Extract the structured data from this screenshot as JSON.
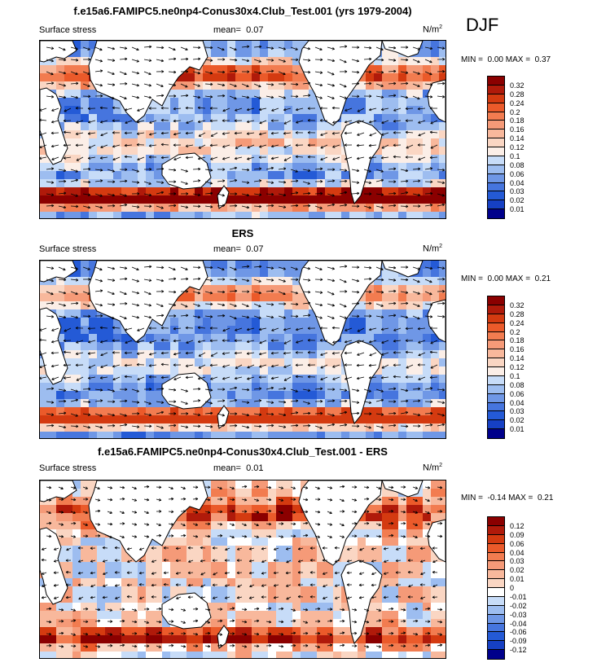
{
  "season": "DJF",
  "panels": [
    {
      "title": "f.e15a6.FAMIPC5.ne0np4-Conus30x4.Club_Test.001 (yrs 1979-2004)",
      "field": "Surface stress",
      "mean_label": "mean=",
      "mean": "0.07",
      "units": "N/m",
      "units_exp": "2",
      "min_label": "MIN =",
      "min": "0.00",
      "max_label": "MAX =",
      "max": "0.37",
      "colorbar": {
        "labels": [
          "0.32",
          "0.28",
          "0.24",
          "0.2",
          "0.18",
          "0.16",
          "0.14",
          "0.12",
          "0.1",
          "0.08",
          "0.06",
          "0.04",
          "0.03",
          "0.02",
          "0.01"
        ],
        "colors": [
          "#8b0000",
          "#b01a0a",
          "#d43a10",
          "#eb5a2a",
          "#f27c50",
          "#f59a78",
          "#f8b89c",
          "#fad6c3",
          "#fbeee7",
          "#c7dcf8",
          "#9dbdf0",
          "#6f97e6",
          "#4675de",
          "#245ad6",
          "#1640c4",
          "#00008b"
        ]
      }
    },
    {
      "title": "ERS",
      "field": "Surface stress",
      "mean_label": "mean=",
      "mean": "0.07",
      "units": "N/m",
      "units_exp": "2",
      "min_label": "MIN =",
      "min": "0.00",
      "max_label": "MAX =",
      "max": "0.21",
      "colorbar": {
        "labels": [
          "0.32",
          "0.28",
          "0.24",
          "0.2",
          "0.18",
          "0.16",
          "0.14",
          "0.12",
          "0.1",
          "0.08",
          "0.06",
          "0.04",
          "0.03",
          "0.02",
          "0.01"
        ],
        "colors": [
          "#8b0000",
          "#b01a0a",
          "#d43a10",
          "#eb5a2a",
          "#f27c50",
          "#f59a78",
          "#f8b89c",
          "#fad6c3",
          "#fbeee7",
          "#c7dcf8",
          "#9dbdf0",
          "#6f97e6",
          "#4675de",
          "#245ad6",
          "#1640c4",
          "#00008b"
        ]
      }
    },
    {
      "title": "f.e15a6.FAMIPC5.ne0np4-Conus30x4.Club_Test.001 - ERS",
      "field": "Surface stress",
      "mean_label": "mean=",
      "mean": "0.01",
      "units": "N/m",
      "units_exp": "2",
      "min_label": "MIN =",
      "min": "-0.14",
      "max_label": "MAX =",
      "max": "0.21",
      "colorbar": {
        "labels": [
          "0.12",
          "0.09",
          "0.06",
          "0.04",
          "0.03",
          "0.02",
          "0.01",
          "0",
          "-0.01",
          "-0.02",
          "-0.03",
          "-0.04",
          "-0.06",
          "-0.09",
          "-0.12"
        ],
        "colors": [
          "#8b0000",
          "#b01a0a",
          "#d43a10",
          "#eb5a2a",
          "#f27c50",
          "#f59a78",
          "#f8b89c",
          "#fad6c3",
          "#ffffff",
          "#c7dcf8",
          "#9dbdf0",
          "#6f97e6",
          "#4675de",
          "#245ad6",
          "#1640c4",
          "#00008b"
        ]
      }
    }
  ]
}
